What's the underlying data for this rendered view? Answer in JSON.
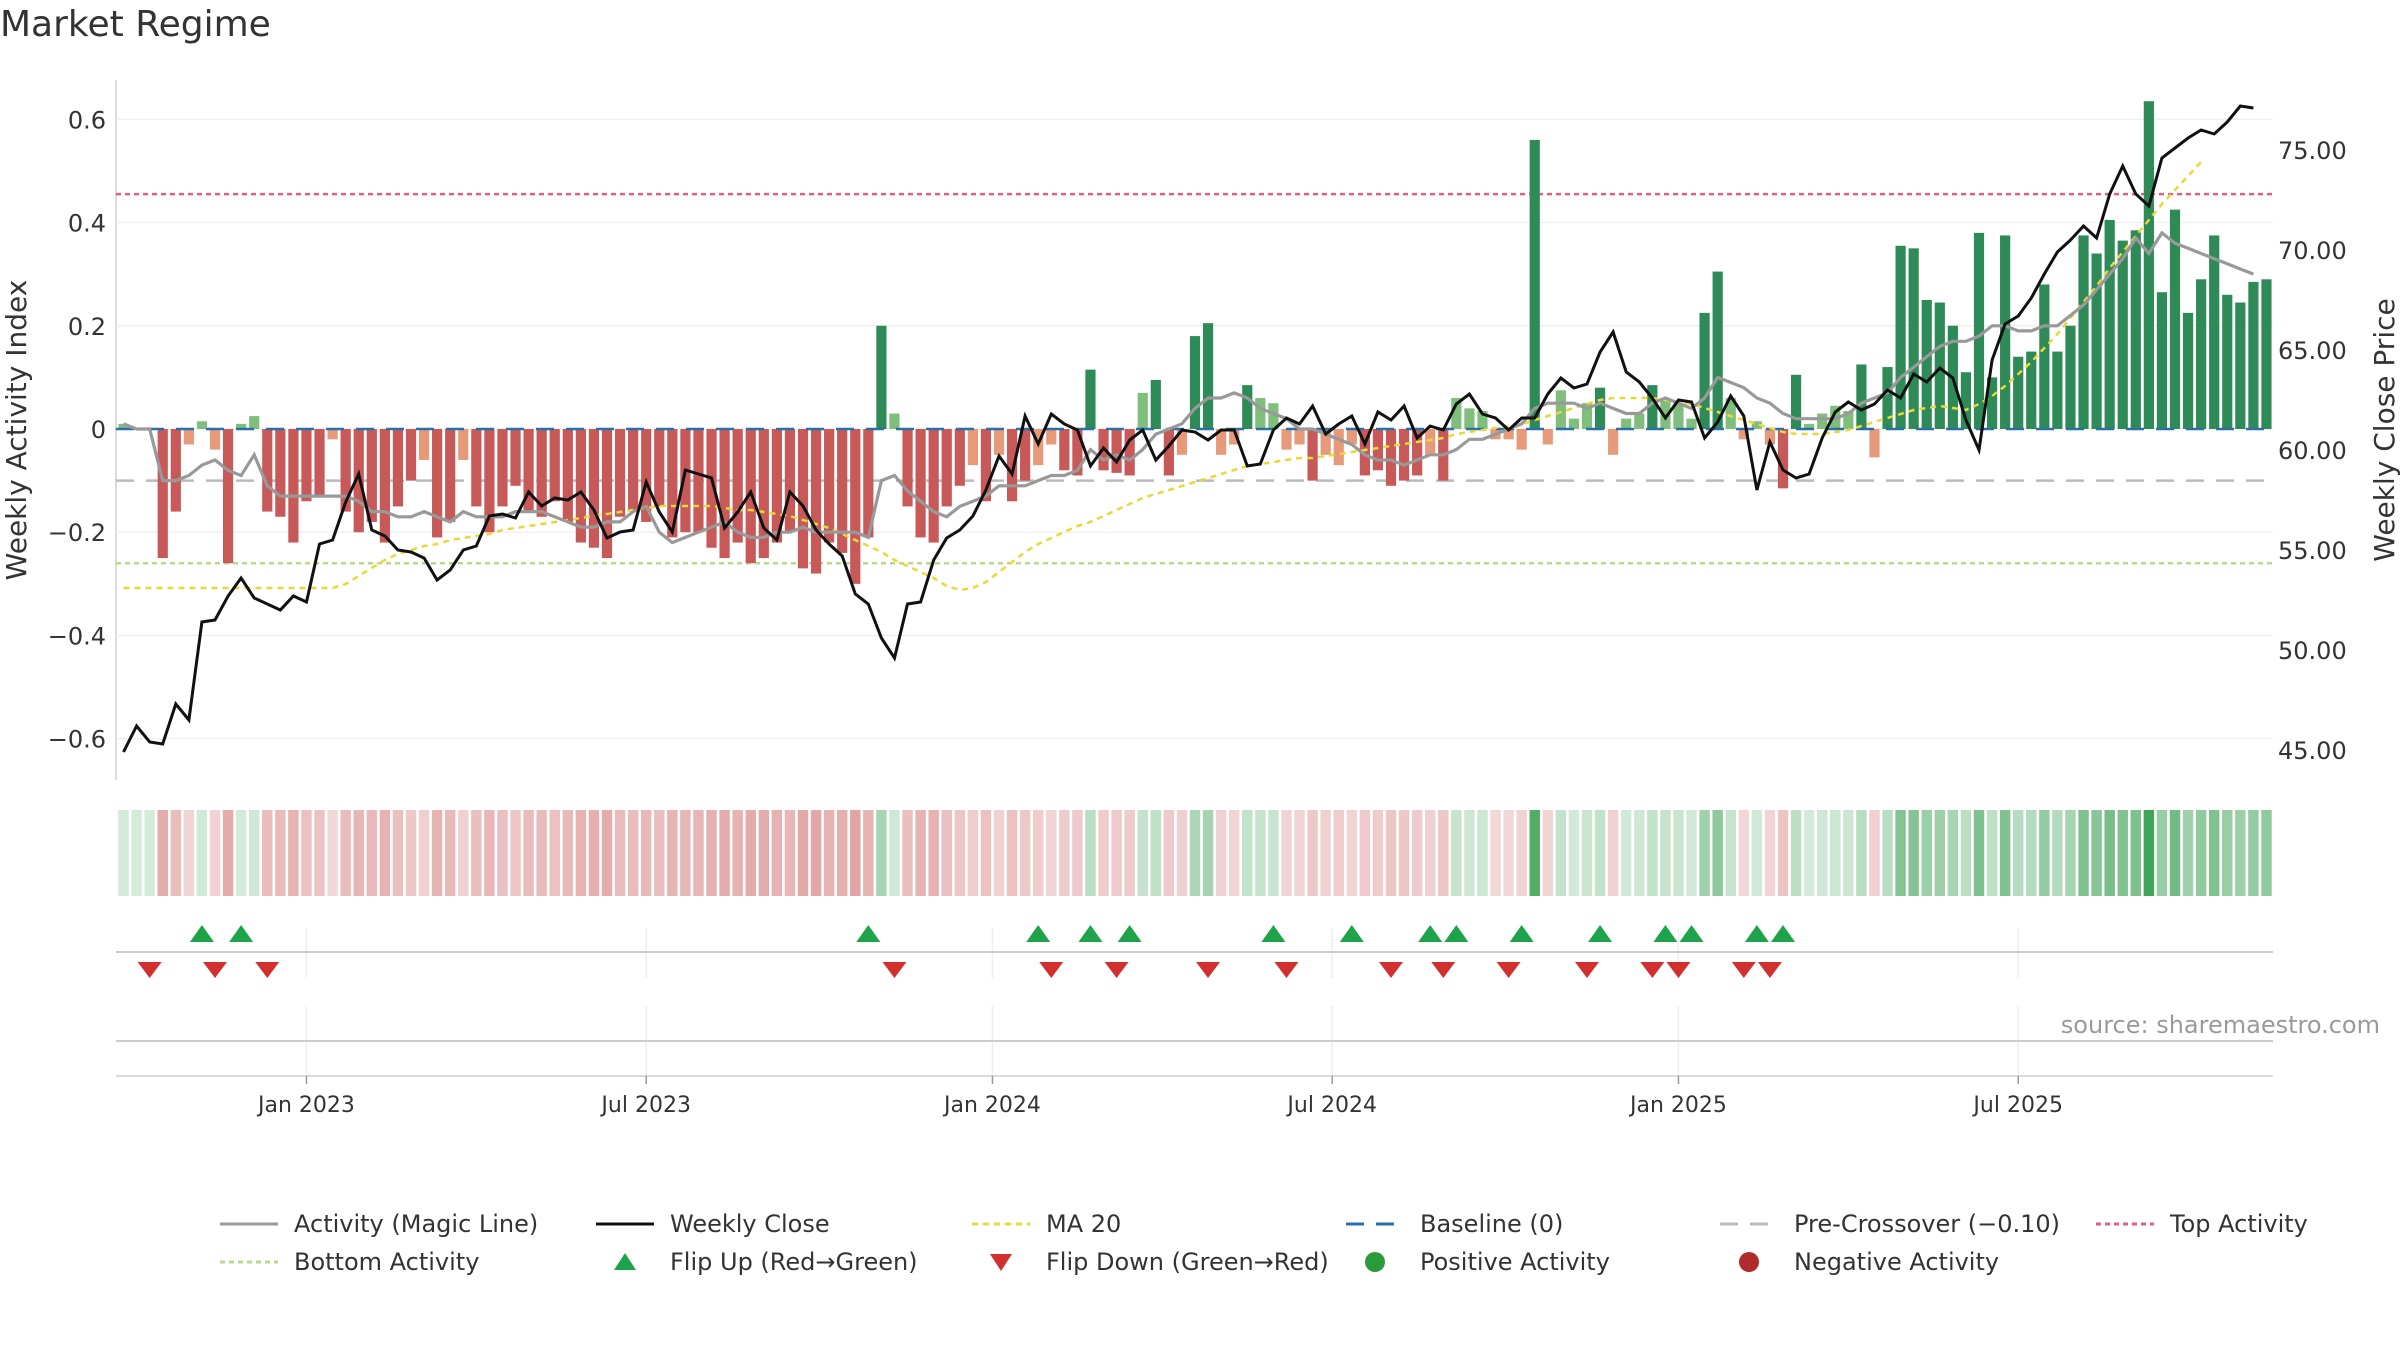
{
  "title": "Market Regime",
  "source": "source: sharemaestro.com",
  "colors": {
    "pos_strong": "#2e8b57",
    "pos_weak": "#7fbf7b",
    "neg_strong": "#c75959",
    "neg_weak": "#e69a7a",
    "magic": "#999999",
    "close": "#111111",
    "ma": "#e8d838",
    "baseline": "#2a6fa8",
    "pre": "#bbbbbb",
    "top": "#e06080",
    "bottom": "#b8d88a",
    "flip_up": "#1fa34a",
    "flip_down": "#d22f2f",
    "pos_dot": "#2a9a3a",
    "neg_dot": "#b22a2a"
  },
  "legend": [
    {
      "key": "magic",
      "label": "Activity (Magic Line)"
    },
    {
      "key": "close",
      "label": "Weekly Close"
    },
    {
      "key": "ma",
      "label": "MA 20"
    },
    {
      "key": "baseline",
      "label": "Baseline (0)"
    },
    {
      "key": "pre",
      "label": "Pre-Crossover (−0.10)"
    },
    {
      "key": "top",
      "label": "Top Activity"
    },
    {
      "key": "bottom",
      "label": "Bottom Activity"
    },
    {
      "key": "flip_up",
      "label": "Flip Up (Red→Green)"
    },
    {
      "key": "flip_down",
      "label": "Flip Down (Green→Red)"
    },
    {
      "key": "pos_dot",
      "label": "Positive Activity"
    },
    {
      "key": "neg_dot",
      "label": "Negative Activity"
    }
  ],
  "chart_data": {
    "type": "bar",
    "title": "Market Regime",
    "y_left_label": "Weekly Activity Index",
    "y_right_label": "Weekly Close Price",
    "y_left_range": [
      -0.68,
      0.68
    ],
    "y_right_range": [
      43.5,
      78.6
    ],
    "y_left_ticks": [
      "-0.6",
      "-0.4",
      "-0.2",
      "0",
      "0.2",
      "0.4",
      "0.6"
    ],
    "y_left_tick_labels": [
      "−0.6",
      "−0.4",
      "−0.2",
      "0",
      "0.2",
      "0.4",
      "0.6"
    ],
    "y_right_ticks": [
      "45.00",
      "50.00",
      "55.00",
      "60.00",
      "65.00",
      "70.00",
      "75.00"
    ],
    "x_ticks": [
      {
        "label": "Jan 2023",
        "week": 14.5
      },
      {
        "label": "Jul 2023",
        "week": 40.5
      },
      {
        "label": "Jan 2024",
        "week": 67
      },
      {
        "label": "Jul 2024",
        "week": 93
      },
      {
        "label": "Jan 2025",
        "week": 119.5
      },
      {
        "label": "Jul 2025",
        "week": 145.5
      }
    ],
    "reference_lines": {
      "top": 0.455,
      "bottom": -0.26,
      "pre": -0.1,
      "baseline": 0
    },
    "activity": [
      0.01,
      0,
      0,
      -0.25,
      -0.16,
      -0.03,
      0.015,
      -0.04,
      -0.26,
      0.01,
      0.025,
      -0.16,
      -0.17,
      -0.22,
      -0.14,
      -0.13,
      -0.02,
      -0.16,
      -0.2,
      -0.18,
      -0.22,
      -0.15,
      -0.1,
      -0.06,
      -0.21,
      -0.18,
      -0.06,
      -0.15,
      -0.2,
      -0.15,
      -0.11,
      -0.16,
      -0.17,
      -0.14,
      -0.18,
      -0.22,
      -0.23,
      -0.25,
      -0.17,
      -0.16,
      -0.18,
      -0.15,
      -0.21,
      -0.2,
      -0.2,
      -0.23,
      -0.25,
      -0.22,
      -0.26,
      -0.25,
      -0.22,
      -0.2,
      -0.27,
      -0.28,
      -0.22,
      -0.24,
      -0.3,
      -0.21,
      0.2,
      0.03,
      -0.15,
      -0.21,
      -0.22,
      -0.15,
      -0.11,
      -0.07,
      -0.14,
      -0.05,
      -0.14,
      -0.1,
      -0.07,
      -0.03,
      -0.08,
      -0.09,
      0.115,
      -0.08,
      -0.085,
      -0.09,
      0.07,
      0.095,
      -0.09,
      -0.05,
      0.18,
      0.205,
      -0.05,
      -0.03,
      0.085,
      0.06,
      0.05,
      -0.04,
      -0.03,
      -0.1,
      -0.05,
      -0.07,
      -0.03,
      -0.09,
      -0.08,
      -0.11,
      -0.1,
      -0.09,
      -0.05,
      -0.1,
      0.06,
      0.04,
      0.035,
      -0.02,
      -0.02,
      -0.04,
      0.56,
      -0.03,
      0.075,
      0.02,
      0.05,
      0.08,
      -0.05,
      0.02,
      0.03,
      0.085,
      0.06,
      0.05,
      0.02,
      0.225,
      0.305,
      0.06,
      -0.02,
      0.015,
      -0.03,
      -0.115,
      0.105,
      0.01,
      0.03,
      0.045,
      0.035,
      0.125,
      -0.055,
      0.12,
      0.355,
      0.35,
      0.25,
      0.245,
      0.2,
      0.11,
      0.38,
      0.1,
      0.375,
      0.14,
      0.15,
      0.28,
      0.15,
      0.2,
      0.375,
      0.34,
      0.405,
      0.365,
      0.385,
      0.635,
      0.265,
      0.425,
      0.225,
      0.29,
      0.375,
      0.26,
      0.245,
      0.285,
      0.29
    ],
    "magic_line": [
      0.01,
      0,
      0,
      -0.1,
      -0.1,
      -0.09,
      -0.07,
      -0.06,
      -0.08,
      -0.09,
      -0.05,
      -0.11,
      -0.13,
      -0.13,
      -0.13,
      -0.13,
      -0.13,
      -0.13,
      -0.14,
      -0.16,
      -0.16,
      -0.17,
      -0.17,
      -0.16,
      -0.17,
      -0.18,
      -0.16,
      -0.17,
      -0.17,
      -0.17,
      -0.16,
      -0.16,
      -0.16,
      -0.17,
      -0.18,
      -0.19,
      -0.19,
      -0.18,
      -0.18,
      -0.16,
      -0.15,
      -0.2,
      -0.22,
      -0.21,
      -0.2,
      -0.19,
      -0.18,
      -0.2,
      -0.21,
      -0.21,
      -0.2,
      -0.2,
      -0.19,
      -0.2,
      -0.2,
      -0.2,
      -0.2,
      -0.21,
      -0.1,
      -0.09,
      -0.12,
      -0.14,
      -0.16,
      -0.17,
      -0.15,
      -0.14,
      -0.13,
      -0.11,
      -0.11,
      -0.11,
      -0.1,
      -0.09,
      -0.09,
      -0.08,
      -0.04,
      -0.06,
      -0.05,
      -0.06,
      -0.04,
      -0.01,
      0,
      0.01,
      0.04,
      0.06,
      0.06,
      0.07,
      0.06,
      0.04,
      0.03,
      0.02,
      0,
      0,
      -0.01,
      -0.02,
      -0.03,
      -0.05,
      -0.06,
      -0.06,
      -0.07,
      -0.06,
      -0.05,
      -0.05,
      -0.04,
      -0.02,
      -0.02,
      -0.01,
      0,
      0.01,
      0.04,
      0.05,
      0.05,
      0.05,
      0.04,
      0.05,
      0.04,
      0.03,
      0.03,
      0.05,
      0.06,
      0.05,
      0.04,
      0.06,
      0.1,
      0.09,
      0.08,
      0.06,
      0.05,
      0.03,
      0.02,
      0.02,
      0.02,
      0.02,
      0.03,
      0.05,
      0.06,
      0.07,
      0.1,
      0.12,
      0.14,
      0.16,
      0.17,
      0.17,
      0.18,
      0.2,
      0.2,
      0.19,
      0.19,
      0.2,
      0.2,
      0.22,
      0.24,
      0.27,
      0.3,
      0.33,
      0.37,
      0.34,
      0.38,
      0.36,
      0.35,
      0.34,
      0.33,
      0.32,
      0.31,
      0.3
    ],
    "weekly_close": [
      44.9,
      46.2,
      45.4,
      45.3,
      47.3,
      46.5,
      51.4,
      51.5,
      52.7,
      53.6,
      52.6,
      52.3,
      52.0,
      52.7,
      52.4,
      55.3,
      55.5,
      57.4,
      58.8,
      56.0,
      55.7,
      55.0,
      54.9,
      54.6,
      53.5,
      54.0,
      55.0,
      55.2,
      56.7,
      56.8,
      56.6,
      57.9,
      57.2,
      57.6,
      57.5,
      57.9,
      57.0,
      55.6,
      55.9,
      56.0,
      58.4,
      56.9,
      55.9,
      59.0,
      58.8,
      58.6,
      56.1,
      56.9,
      57.9,
      56.1,
      55.5,
      57.9,
      57.2,
      56.0,
      55.3,
      54.7,
      52.8,
      52.3,
      50.6,
      49.6,
      52.3,
      52.4,
      54.5,
      55.6,
      56.0,
      56.7,
      58.0,
      59.7,
      58.8,
      61.7,
      60.3,
      61.8,
      61.3,
      61.0,
      59.2,
      60.1,
      59.4,
      60.5,
      61.0,
      59.5,
      60.2,
      61.0,
      60.9,
      60.5,
      61.0,
      61.0,
      59.2,
      59.3,
      61.0,
      61.6,
      61.3,
      62.2,
      60.8,
      61.3,
      61.7,
      60.3,
      61.9,
      61.5,
      62.2,
      60.6,
      61.2,
      61.0,
      62.3,
      62.8,
      61.8,
      61.6,
      61.0,
      61.6,
      61.6,
      62.8,
      63.6,
      63.1,
      63.3,
      64.9,
      65.9,
      63.9,
      63.4,
      62.6,
      61.6,
      62.5,
      62.4,
      60.6,
      61.4,
      62.7,
      61.7,
      58.0,
      60.4,
      59.0,
      58.6,
      58.8,
      60.6,
      61.9,
      62.4,
      62.0,
      62.3,
      63.0,
      62.6,
      63.8,
      63.4,
      64.1,
      63.6,
      61.5,
      60.0,
      64.5,
      66.3,
      66.7,
      67.6,
      68.8,
      69.9,
      70.5,
      71.2,
      70.6,
      72.8,
      74.2,
      72.8,
      72.2,
      74.6,
      75.1,
      75.6,
      76.0,
      75.8,
      76.4,
      77.2,
      77.1
    ],
    "ma20": [
      53.1,
      53.1,
      53.1,
      53.1,
      53.1,
      53.1,
      53.1,
      53.1,
      53.1,
      53.1,
      53.1,
      53.1,
      53.1,
      53.1,
      53.1,
      53.1,
      53.1,
      53.3,
      53.7,
      54.1,
      54.5,
      54.8,
      55.0,
      55.2,
      55.3,
      55.5,
      55.6,
      55.7,
      55.8,
      56.0,
      56.1,
      56.2,
      56.3,
      56.4,
      56.5,
      56.6,
      56.7,
      56.8,
      56.9,
      57.0,
      57.1,
      57.2,
      57.2,
      57.2,
      57.2,
      57.2,
      57.1,
      57.0,
      57.0,
      56.9,
      56.8,
      56.7,
      56.5,
      56.3,
      56.1,
      55.8,
      55.5,
      55.2,
      54.9,
      54.5,
      54.2,
      53.9,
      53.6,
      53.2,
      53.0,
      53.1,
      53.4,
      53.9,
      54.4,
      54.9,
      55.3,
      55.6,
      55.9,
      56.2,
      56.4,
      56.7,
      57.0,
      57.3,
      57.6,
      57.8,
      58.0,
      58.2,
      58.4,
      58.6,
      58.8,
      59.0,
      59.2,
      59.3,
      59.4,
      59.5,
      59.6,
      59.6,
      59.7,
      59.8,
      59.9,
      60.0,
      60.1,
      60.2,
      60.3,
      60.4,
      60.5,
      60.6,
      60.8,
      60.9,
      61.0,
      61.1,
      61.2,
      61.3,
      61.5,
      61.7,
      61.9,
      62.1,
      62.3,
      62.5,
      62.6,
      62.6,
      62.6,
      62.6,
      62.5,
      62.4,
      62.3,
      62.1,
      61.9,
      61.7,
      61.5,
      61.3,
      61.1,
      60.9,
      60.8,
      60.8,
      60.8,
      60.9,
      61.0,
      61.2,
      61.4,
      61.6,
      61.8,
      62.0,
      62.1,
      62.2,
      62.1,
      62.0,
      62.3,
      62.7,
      63.2,
      63.8,
      64.4,
      65.1,
      65.8,
      66.6,
      67.4,
      68.2,
      69.1,
      69.9,
      70.7,
      71.5,
      72.3,
      73.0,
      73.7,
      74.4
    ],
    "flip_up_weeks": [
      6,
      9,
      57,
      70,
      74,
      77,
      88,
      94,
      100,
      102,
      107,
      113,
      118,
      120,
      125,
      127
    ],
    "flip_down_weeks": [
      2,
      7,
      11,
      59,
      71,
      76,
      83,
      89,
      97,
      101,
      106,
      112,
      117,
      119,
      124,
      126
    ]
  }
}
